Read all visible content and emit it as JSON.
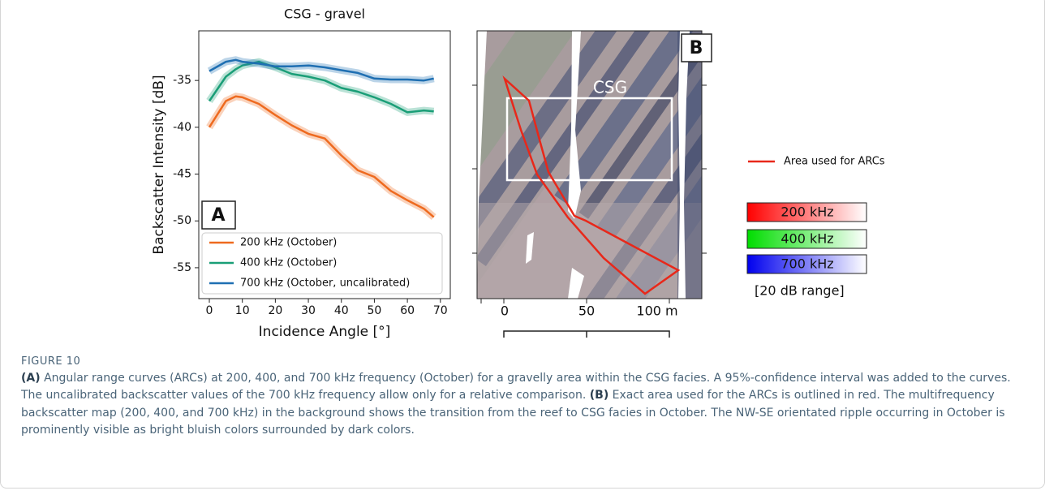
{
  "chart_data": {
    "type": "line",
    "title": "CSG - gravel",
    "panel_label": "A",
    "x_label": "Incidence Angle [°]",
    "y_label": "Backscatter Intensity [dB]",
    "x": [
      0,
      5,
      8,
      10,
      15,
      20,
      25,
      30,
      35,
      40,
      45,
      50,
      55,
      60,
      65,
      68
    ],
    "series": [
      {
        "name": "200 kHz (October)",
        "color": "#ee6a1f",
        "values": [
          -40,
          -37.2,
          -36.7,
          -36.8,
          -37.5,
          -38.7,
          -39.8,
          -40.7,
          -41.2,
          -43,
          -44.6,
          -45.3,
          -46.8,
          -47.8,
          -48.7,
          -49.6
        ]
      },
      {
        "name": "400 kHz (October)",
        "color": "#1a9e77",
        "values": [
          -37.2,
          -34.6,
          -33.8,
          -33.4,
          -33,
          -33.6,
          -34.3,
          -34.6,
          -35,
          -35.8,
          -36.2,
          -36.8,
          -37.5,
          -38.4,
          -38.2,
          -38.3
        ]
      },
      {
        "name": "700 kHz (October, uncalibrated)",
        "color": "#1f6fb2",
        "values": [
          -34,
          -33,
          -32.8,
          -33,
          -33.2,
          -33.5,
          -33.5,
          -33.4,
          -33.6,
          -33.9,
          -34.2,
          -34.8,
          -34.9,
          -34.9,
          -35,
          -34.8
        ]
      }
    ],
    "xlim": [
      -3.2,
      73
    ],
    "ylim": [
      -58.3,
      -29.7
    ],
    "xticks": [
      0,
      10,
      20,
      30,
      40,
      50,
      60,
      70
    ],
    "yticks": [
      -35,
      -40,
      -45,
      -50,
      -55
    ],
    "legend": "lower left"
  },
  "map": {
    "panel_label": "B",
    "region_label": "CSG",
    "scale_labels": [
      "0",
      "50",
      "100 m"
    ],
    "outline_legend": "Area used for ARCs",
    "colorbars": [
      {
        "name": "200 kHz",
        "color": "#ff0000"
      },
      {
        "name": "400 kHz",
        "color": "#00dd00"
      },
      {
        "name": "700 kHz",
        "color": "#0000ee"
      }
    ],
    "colorbar_note": "[20 dB range]"
  },
  "figure": {
    "label": "FIGURE 10",
    "caption": [
      {
        "label": "(A)",
        "text": " Angular range curves (ARCs) at 200, 400, and 700 kHz frequency (October) for a gravelly area within the CSG facies. A 95%-confidence interval was added to the curves. The uncalibrated backscatter values of the 700 kHz frequency allow only for a relative comparison. "
      },
      {
        "label": "(B)",
        "text": " Exact area used for the ARCs is outlined in red. The multifrequency backscatter map (200, 400, and 700 kHz) in the background shows the transition from the reef to CSG facies in October. The NW-SE orientated ripple occurring in October is prominently visible as bright bluish colors surrounded by dark colors."
      }
    ]
  }
}
